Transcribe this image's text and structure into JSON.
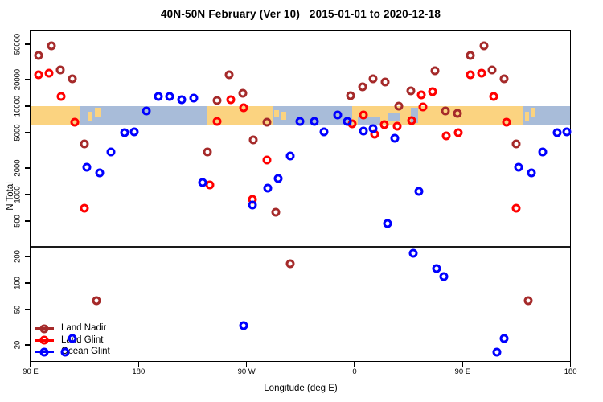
{
  "chart_data": {
    "type": "scatter",
    "title": "40N-50N February (Ver 10)   2015-01-01 to 2020-12-18",
    "xlabel": "Longitude (deg E)",
    "ylabel": "N Total",
    "y_axis": {
      "scale": "log",
      "ticks": [
        50000,
        20000,
        10000,
        5000,
        2000,
        1000,
        500,
        200,
        100,
        50,
        20
      ],
      "range_px_note": "log decade = 110px"
    },
    "x_axis": {
      "ticks": [
        {
          "pos": 90,
          "label": "90 E"
        },
        {
          "pos": 180,
          "label": "180"
        },
        {
          "pos": 270,
          "label": "90 W"
        },
        {
          "pos": 360,
          "label": "0"
        },
        {
          "pos": 450,
          "label": "90 E"
        },
        {
          "pos": 540,
          "label": "180"
        }
      ],
      "axis_span_deg": [
        90,
        540
      ]
    },
    "reference_line": {
      "value": 260
    },
    "map_band": {
      "top_value": 10200,
      "bottom_value": 6300,
      "land_color": "#FBD380",
      "ocean_color": "#A8BCD9",
      "segments": [
        {
          "kind": "land",
          "from": 90,
          "to": 131,
          "t": 0,
          "b": 1
        },
        {
          "kind": "land",
          "from": 137.5,
          "to": 141,
          "t": 0.3,
          "b": 0.78
        },
        {
          "kind": "land",
          "from": 143,
          "to": 147.5,
          "t": 0.1,
          "b": 0.55
        },
        {
          "kind": "land",
          "from": 237,
          "to": 291,
          "t": 0,
          "b": 1
        },
        {
          "kind": "land",
          "from": 292.5,
          "to": 296.5,
          "t": 0.2,
          "b": 0.62
        },
        {
          "kind": "land",
          "from": 298.5,
          "to": 302.5,
          "t": 0.32,
          "b": 0.72
        },
        {
          "kind": "land",
          "from": 357,
          "to": 500,
          "t": 0,
          "b": 1
        },
        {
          "kind": "ocean",
          "from": 362,
          "to": 381,
          "t": 0.6,
          "b": 1
        },
        {
          "kind": "ocean",
          "from": 386.5,
          "to": 397,
          "t": 0.35,
          "b": 0.78
        },
        {
          "kind": "ocean",
          "from": 406.5,
          "to": 412,
          "t": 0.08,
          "b": 0.92
        },
        {
          "kind": "land",
          "from": 501.5,
          "to": 505,
          "t": 0.3,
          "b": 0.78
        },
        {
          "kind": "land",
          "from": 506,
          "to": 510,
          "t": 0.1,
          "b": 0.55
        }
      ]
    },
    "series": [
      {
        "name": "Land Nadir",
        "color": "#A52A2A",
        "points": [
          [
            96,
            38000
          ],
          [
            107,
            49000
          ],
          [
            114,
            26000
          ],
          [
            124,
            21000
          ],
          [
            134,
            3800
          ],
          [
            144,
            65
          ],
          [
            237,
            3100
          ],
          [
            245,
            11800
          ],
          [
            255,
            23000
          ],
          [
            266,
            14300
          ],
          [
            275,
            4200
          ],
          [
            286,
            6700
          ],
          [
            294,
            650
          ],
          [
            306,
            170
          ],
          [
            356,
            13400
          ],
          [
            366,
            17000
          ],
          [
            375,
            21000
          ],
          [
            385,
            19000
          ],
          [
            396,
            10200
          ],
          [
            406,
            15200
          ],
          [
            426,
            25600
          ],
          [
            435,
            9000
          ],
          [
            445,
            8500
          ],
          [
            456,
            38000
          ],
          [
            467,
            49000
          ],
          [
            474,
            26000
          ],
          [
            484,
            21000
          ],
          [
            494,
            3800
          ],
          [
            504,
            65
          ]
        ]
      },
      {
        "name": "Land Glint",
        "color": "#FF0000",
        "points": [
          [
            96,
            23000
          ],
          [
            105,
            24000
          ],
          [
            115,
            13000
          ],
          [
            126,
            6700
          ],
          [
            134,
            720
          ],
          [
            239,
            1300
          ],
          [
            245,
            6900
          ],
          [
            256,
            12000
          ],
          [
            267,
            9800
          ],
          [
            274,
            900
          ],
          [
            286,
            2500
          ],
          [
            357,
            6400
          ],
          [
            367,
            8100
          ],
          [
            376,
            4900
          ],
          [
            384,
            6300
          ],
          [
            395,
            6000
          ],
          [
            407,
            7000
          ],
          [
            415,
            13700
          ],
          [
            416,
            10000
          ],
          [
            424,
            15000
          ],
          [
            436,
            4700
          ],
          [
            446,
            5100
          ],
          [
            456,
            23000
          ],
          [
            465,
            24000
          ],
          [
            475,
            13000
          ],
          [
            486,
            6700
          ],
          [
            494,
            720
          ]
        ]
      },
      {
        "name": "Ocean Glint",
        "color": "#0000FF",
        "points": [
          [
            118,
            17
          ],
          [
            124,
            24
          ],
          [
            136,
            2100
          ],
          [
            147,
            1800
          ],
          [
            156,
            3100
          ],
          [
            168,
            5100
          ],
          [
            176,
            5200
          ],
          [
            186,
            9000
          ],
          [
            196,
            13000
          ],
          [
            205,
            13000
          ],
          [
            215,
            12000
          ],
          [
            225,
            12600
          ],
          [
            233,
            1400
          ],
          [
            267,
            34
          ],
          [
            274,
            780
          ],
          [
            287,
            1200
          ],
          [
            296,
            1550
          ],
          [
            306,
            2800
          ],
          [
            314,
            6800
          ],
          [
            326,
            6800
          ],
          [
            334,
            5200
          ],
          [
            345,
            8100
          ],
          [
            353,
            6900
          ],
          [
            367,
            5300
          ],
          [
            375,
            5700
          ],
          [
            387,
            480
          ],
          [
            393,
            4400
          ],
          [
            408,
            220
          ],
          [
            413,
            1100
          ],
          [
            428,
            150
          ],
          [
            434,
            120
          ],
          [
            478,
            17
          ],
          [
            484,
            24
          ],
          [
            496,
            2100
          ],
          [
            507,
            1800
          ],
          [
            516,
            3100
          ],
          [
            528,
            5100
          ],
          [
            536,
            5200
          ]
        ]
      }
    ],
    "legend": {
      "position": "bottom-left",
      "entries": [
        "Land Nadir",
        "Land Glint",
        "Ocean Glint"
      ]
    }
  }
}
